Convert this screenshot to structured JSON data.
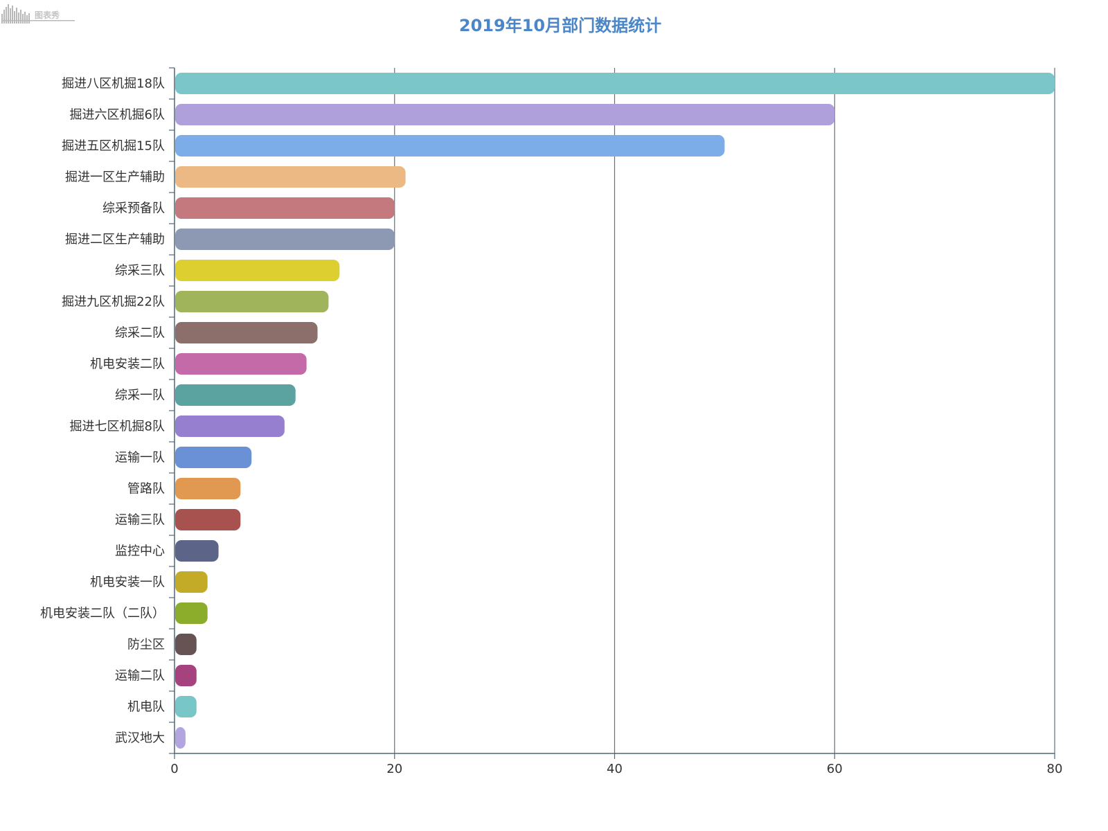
{
  "logo": {
    "icon": "waveform-logo",
    "text": "图表秀"
  },
  "chart_data": {
    "type": "bar",
    "orientation": "horizontal",
    "title": "2019年10月部门数据统计",
    "xlabel": "",
    "ylabel": "",
    "xlim": [
      0,
      80
    ],
    "x_ticks": [
      0,
      20,
      40,
      60,
      80
    ],
    "grid": true,
    "categories": [
      "掘进八区机掘18队",
      "掘进六区机掘6队",
      "掘进五区机掘15队",
      "掘进一区生产辅助",
      "综采预备队",
      "掘进二区生产辅助",
      "综采三队",
      "掘进九区机掘22队",
      "综采二队",
      "机电安装二队",
      "综采一队",
      "掘进七区机掘8队",
      "运输一队",
      "管路队",
      "运输三队",
      "监控中心",
      "机电安装一队",
      "机电安装二队（二队）",
      "防尘区",
      "运输二队",
      "机电队",
      "武汉地大"
    ],
    "values": [
      80,
      60,
      50,
      21,
      20,
      20,
      15,
      14,
      13,
      12,
      11,
      10,
      7,
      6,
      6,
      4,
      3,
      3,
      2,
      2,
      2,
      1
    ],
    "colors": [
      "#7ac6c8",
      "#afa0dc",
      "#7cade9",
      "#ecb985",
      "#c4797e",
      "#8d98b2",
      "#decf31",
      "#a0b45c",
      "#8c6f6a",
      "#c56aa9",
      "#5aa3a0",
      "#977fcf",
      "#6a90d6",
      "#e19952",
      "#a85250",
      "#5c6588",
      "#c3ab28",
      "#8cad2b",
      "#675353",
      "#a5437e",
      "#79c6c9",
      "#b3a5df"
    ]
  }
}
